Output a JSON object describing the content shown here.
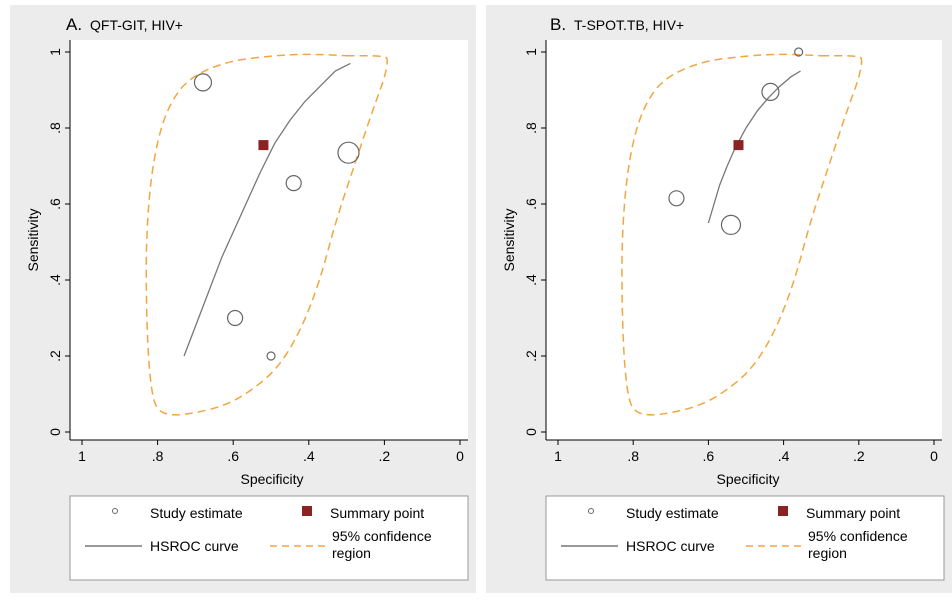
{
  "colors": {
    "panel_bg": "#ececec",
    "plot_bg": "#ffffff",
    "curve": "#777777",
    "confidence": "#f2a640",
    "summary": "#8b2323",
    "marker": "#666666"
  },
  "legend": {
    "study_estimate": "Study estimate",
    "summary_point": "Summary point",
    "hsroc_curve": "HSROC curve",
    "confidence_line1": "95% confidence",
    "confidence_line2": "region"
  },
  "chart_data": [
    {
      "type": "scatter",
      "title_letter": "A.",
      "title": "QFT-GIT, HIV+",
      "xlabel": "Specificity",
      "ylabel": "Sensitivity",
      "x_reversed": true,
      "xlim": [
        1,
        0
      ],
      "ylim": [
        0,
        1
      ],
      "x_ticks": [
        1,
        0.8,
        0.6,
        0.4,
        0.2,
        0
      ],
      "x_tick_labels": [
        "1",
        ".8",
        ".6",
        ".4",
        ".2",
        "0"
      ],
      "y_ticks": [
        0,
        0.2,
        0.4,
        0.6,
        0.8,
        1
      ],
      "y_tick_labels": [
        "0",
        ".2",
        ".4",
        ".6",
        ".8",
        "1"
      ],
      "grid": false,
      "legend_position": "bottom",
      "studies": [
        {
          "spec": 0.68,
          "sens": 0.92,
          "weight": 0.55
        },
        {
          "spec": 0.44,
          "sens": 0.655,
          "weight": 0.45
        },
        {
          "spec": 0.295,
          "sens": 0.735,
          "weight": 0.75
        },
        {
          "spec": 0.595,
          "sens": 0.3,
          "weight": 0.45
        },
        {
          "spec": 0.5,
          "sens": 0.2,
          "weight": 0.1
        }
      ],
      "summary_point": {
        "spec": 0.52,
        "sens": 0.755
      },
      "hsroc_curve": [
        [
          0.73,
          0.2
        ],
        [
          0.68,
          0.33
        ],
        [
          0.63,
          0.46
        ],
        [
          0.58,
          0.57
        ],
        [
          0.53,
          0.68
        ],
        [
          0.49,
          0.76
        ],
        [
          0.45,
          0.82
        ],
        [
          0.41,
          0.87
        ],
        [
          0.37,
          0.91
        ],
        [
          0.33,
          0.95
        ],
        [
          0.29,
          0.97
        ]
      ],
      "confidence_region": [
        [
          0.3,
          0.99
        ],
        [
          0.2,
          0.99
        ],
        [
          0.19,
          0.98
        ],
        [
          0.2,
          0.93
        ],
        [
          0.23,
          0.85
        ],
        [
          0.28,
          0.7
        ],
        [
          0.33,
          0.55
        ],
        [
          0.37,
          0.4
        ],
        [
          0.42,
          0.27
        ],
        [
          0.48,
          0.17
        ],
        [
          0.55,
          0.11
        ],
        [
          0.62,
          0.07
        ],
        [
          0.7,
          0.05
        ],
        [
          0.76,
          0.043
        ],
        [
          0.8,
          0.055
        ],
        [
          0.815,
          0.1
        ],
        [
          0.825,
          0.2
        ],
        [
          0.83,
          0.35
        ],
        [
          0.83,
          0.5
        ],
        [
          0.82,
          0.65
        ],
        [
          0.8,
          0.77
        ],
        [
          0.77,
          0.86
        ],
        [
          0.72,
          0.93
        ],
        [
          0.62,
          0.975
        ],
        [
          0.5,
          0.99
        ],
        [
          0.4,
          0.995
        ],
        [
          0.3,
          0.99
        ]
      ]
    },
    {
      "type": "scatter",
      "title_letter": "B.",
      "title": "T-SPOT.TB, HIV+",
      "xlabel": "Specificity",
      "ylabel": "Sensitivity",
      "x_reversed": true,
      "xlim": [
        1,
        0
      ],
      "ylim": [
        0,
        1
      ],
      "x_ticks": [
        1,
        0.8,
        0.6,
        0.4,
        0.2,
        0
      ],
      "x_tick_labels": [
        "1",
        ".8",
        ".6",
        ".4",
        ".2",
        "0"
      ],
      "y_ticks": [
        0,
        0.2,
        0.4,
        0.6,
        0.8,
        1
      ],
      "y_tick_labels": [
        "0",
        ".2",
        ".4",
        ".6",
        ".8",
        "1"
      ],
      "grid": false,
      "legend_position": "bottom",
      "studies": [
        {
          "spec": 0.36,
          "sens": 1.0,
          "weight": 0.1
        },
        {
          "spec": 0.435,
          "sens": 0.895,
          "weight": 0.55
        },
        {
          "spec": 0.685,
          "sens": 0.615,
          "weight": 0.45
        },
        {
          "spec": 0.54,
          "sens": 0.545,
          "weight": 0.65
        }
      ],
      "summary_point": {
        "spec": 0.52,
        "sens": 0.755
      },
      "hsroc_curve": [
        [
          0.6,
          0.55
        ],
        [
          0.585,
          0.6
        ],
        [
          0.57,
          0.65
        ],
        [
          0.55,
          0.7
        ],
        [
          0.53,
          0.745
        ],
        [
          0.5,
          0.8
        ],
        [
          0.47,
          0.845
        ],
        [
          0.44,
          0.88
        ],
        [
          0.41,
          0.91
        ],
        [
          0.38,
          0.935
        ],
        [
          0.355,
          0.95
        ]
      ],
      "confidence_region": [
        [
          0.3,
          0.99
        ],
        [
          0.2,
          0.99
        ],
        [
          0.19,
          0.98
        ],
        [
          0.2,
          0.93
        ],
        [
          0.23,
          0.85
        ],
        [
          0.28,
          0.7
        ],
        [
          0.33,
          0.55
        ],
        [
          0.37,
          0.4
        ],
        [
          0.42,
          0.27
        ],
        [
          0.48,
          0.17
        ],
        [
          0.55,
          0.11
        ],
        [
          0.62,
          0.07
        ],
        [
          0.7,
          0.05
        ],
        [
          0.76,
          0.043
        ],
        [
          0.8,
          0.055
        ],
        [
          0.815,
          0.1
        ],
        [
          0.825,
          0.2
        ],
        [
          0.83,
          0.35
        ],
        [
          0.83,
          0.5
        ],
        [
          0.82,
          0.65
        ],
        [
          0.8,
          0.77
        ],
        [
          0.77,
          0.86
        ],
        [
          0.72,
          0.93
        ],
        [
          0.62,
          0.975
        ],
        [
          0.5,
          0.99
        ],
        [
          0.4,
          0.995
        ],
        [
          0.3,
          0.99
        ]
      ]
    }
  ]
}
